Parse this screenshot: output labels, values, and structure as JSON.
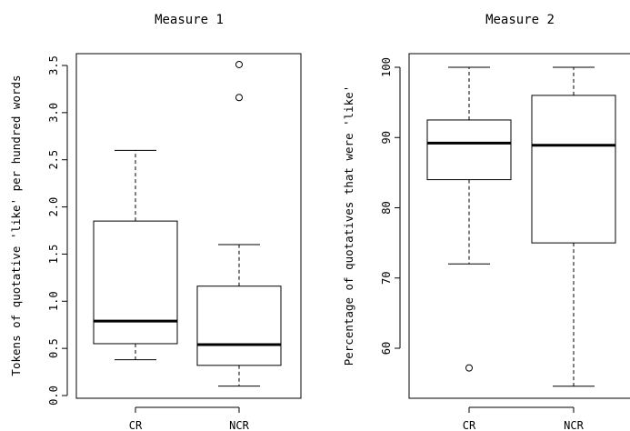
{
  "chart_data": [
    {
      "type": "boxplot",
      "title": "Measure 1",
      "xlabel": "",
      "ylabel": "Tokens of quotative 'like' per hundred words",
      "ylim": [
        0,
        3.6
      ],
      "yticks": [
        "0.0",
        "0.5",
        "1.0",
        "1.5",
        "2.0",
        "2.5",
        "3.0",
        "3.5"
      ],
      "categories": [
        "CR",
        "NCR"
      ],
      "boxes": [
        {
          "category": "CR",
          "whisker_low": 0.38,
          "q1": 0.55,
          "median": 0.79,
          "q3": 1.85,
          "whisker_high": 2.6,
          "outliers": []
        },
        {
          "category": "NCR",
          "whisker_low": 0.1,
          "q1": 0.32,
          "median": 0.54,
          "q3": 1.16,
          "whisker_high": 1.6,
          "outliers": [
            3.16,
            3.51
          ]
        }
      ]
    },
    {
      "type": "boxplot",
      "title": "Measure 2",
      "xlabel": "",
      "ylabel": "Percentage of quotatives that were 'like'",
      "ylim": [
        53,
        101
      ],
      "yticks": [
        "60",
        "70",
        "80",
        "90",
        "100"
      ],
      "categories": [
        "CR",
        "NCR"
      ],
      "boxes": [
        {
          "category": "CR",
          "whisker_low": 72,
          "q1": 84,
          "median": 89.2,
          "q3": 92.5,
          "whisker_high": 100,
          "outliers": [
            57.2
          ]
        },
        {
          "category": "NCR",
          "whisker_low": 54.6,
          "q1": 75,
          "median": 88.9,
          "q3": 96,
          "whisker_high": 100,
          "outliers": []
        }
      ]
    }
  ]
}
